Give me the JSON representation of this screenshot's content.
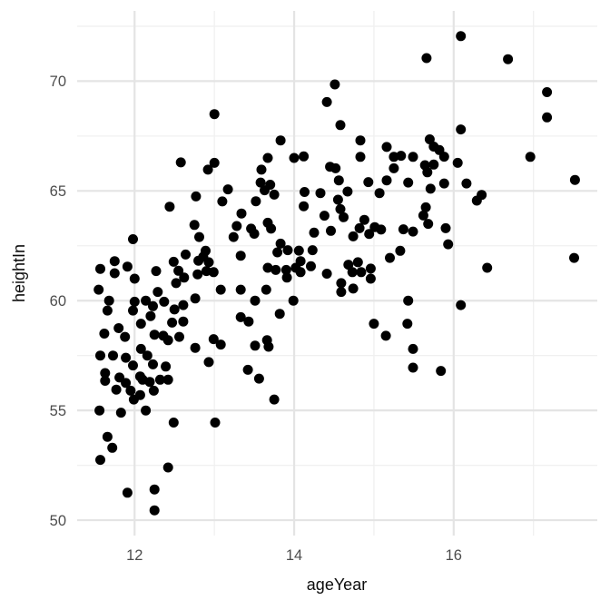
{
  "chart_data": {
    "type": "scatter",
    "title": "",
    "xlabel": "ageYear",
    "ylabel": "heightIn",
    "x_axis": {
      "ticks": [
        12,
        14,
        16
      ],
      "minor_ticks": [
        13,
        15,
        17
      ],
      "range": [
        11.28,
        17.8
      ]
    },
    "y_axis": {
      "ticks": [
        50,
        55,
        60,
        65,
        70
      ],
      "minor_ticks": [
        52.5,
        57.5,
        62.5,
        67.5,
        72.5
      ],
      "range": [
        49.3,
        73.2
      ]
    },
    "grid": true,
    "legend": false,
    "style": {
      "background": "#ffffff",
      "grid_major_color": "#e4e4e4",
      "grid_minor_color": "#f0f0f0",
      "grid_major_width": 2.2,
      "grid_minor_width": 1.3,
      "point_color": "#000000",
      "point_radius": 5.5,
      "tick_label_color": "#4d4d4d",
      "axis_title_color": "#0d0d0d"
    },
    "points": [
      [
        16.09,
        72.05
      ],
      [
        15.66,
        71.05
      ],
      [
        16.68,
        71.0
      ],
      [
        14.51,
        69.85
      ],
      [
        17.17,
        69.5
      ],
      [
        14.41,
        69.05
      ],
      [
        13.0,
        68.5
      ],
      [
        14.58,
        68.0
      ],
      [
        17.17,
        68.35
      ],
      [
        16.09,
        67.8
      ],
      [
        13.83,
        67.3
      ],
      [
        14.83,
        67.3
      ],
      [
        15.16,
        67.0
      ],
      [
        15.7,
        67.35
      ],
      [
        15.75,
        67.02
      ],
      [
        12.58,
        66.3
      ],
      [
        13.0,
        66.28
      ],
      [
        13.67,
        66.5
      ],
      [
        14.0,
        66.5
      ],
      [
        14.12,
        66.57
      ],
      [
        14.45,
        66.1
      ],
      [
        14.52,
        66.03
      ],
      [
        14.83,
        66.55
      ],
      [
        15.25,
        66.55
      ],
      [
        15.34,
        66.6
      ],
      [
        15.49,
        66.55
      ],
      [
        15.64,
        66.17
      ],
      [
        15.75,
        66.2
      ],
      [
        16.05,
        66.28
      ],
      [
        16.96,
        66.55
      ],
      [
        15.25,
        66.03
      ],
      [
        15.82,
        66.86
      ],
      [
        15.88,
        66.56
      ],
      [
        12.92,
        65.97
      ],
      [
        13.59,
        65.97
      ],
      [
        13.58,
        65.38
      ],
      [
        13.7,
        65.28
      ],
      [
        13.17,
        65.07
      ],
      [
        13.63,
        65.03
      ],
      [
        14.56,
        65.48
      ],
      [
        14.93,
        65.4
      ],
      [
        15.16,
        65.48
      ],
      [
        15.43,
        65.38
      ],
      [
        15.71,
        65.1
      ],
      [
        15.88,
        65.34
      ],
      [
        16.16,
        65.34
      ],
      [
        17.52,
        65.5
      ],
      [
        15.67,
        65.85
      ],
      [
        12.44,
        64.28
      ],
      [
        12.77,
        64.75
      ],
      [
        13.1,
        64.52
      ],
      [
        13.52,
        64.53
      ],
      [
        13.75,
        64.83
      ],
      [
        14.12,
        64.3
      ],
      [
        14.13,
        64.95
      ],
      [
        14.33,
        64.9
      ],
      [
        14.55,
        64.6
      ],
      [
        14.58,
        64.17
      ],
      [
        14.67,
        64.97
      ],
      [
        15.07,
        64.9
      ],
      [
        15.65,
        64.25
      ],
      [
        16.29,
        64.56
      ],
      [
        16.35,
        64.82
      ],
      [
        12.75,
        63.45
      ],
      [
        13.28,
        63.4
      ],
      [
        13.34,
        63.97
      ],
      [
        13.46,
        63.28
      ],
      [
        13.5,
        63.05
      ],
      [
        13.67,
        63.55
      ],
      [
        13.71,
        63.28
      ],
      [
        14.25,
        63.1
      ],
      [
        14.38,
        63.87
      ],
      [
        14.46,
        63.18
      ],
      [
        14.62,
        63.8
      ],
      [
        14.82,
        63.3
      ],
      [
        14.88,
        63.68
      ],
      [
        14.94,
        63.04
      ],
      [
        15.01,
        63.35
      ],
      [
        15.09,
        63.24
      ],
      [
        15.37,
        63.25
      ],
      [
        15.49,
        63.15
      ],
      [
        15.62,
        63.88
      ],
      [
        15.68,
        63.5
      ],
      [
        15.9,
        63.3
      ],
      [
        11.98,
        62.8
      ],
      [
        12.64,
        62.1
      ],
      [
        12.81,
        62.9
      ],
      [
        12.86,
        62.0
      ],
      [
        12.89,
        62.27
      ],
      [
        13.24,
        62.9
      ],
      [
        13.33,
        62.05
      ],
      [
        13.79,
        62.2
      ],
      [
        13.83,
        62.6
      ],
      [
        13.92,
        62.3
      ],
      [
        14.06,
        62.28
      ],
      [
        14.23,
        62.3
      ],
      [
        14.74,
        62.93
      ],
      [
        15.33,
        62.27
      ],
      [
        15.93,
        62.57
      ],
      [
        11.57,
        61.45
      ],
      [
        11.75,
        61.8
      ],
      [
        11.75,
        61.25
      ],
      [
        11.91,
        61.55
      ],
      [
        12.0,
        61.0
      ],
      [
        12.27,
        61.35
      ],
      [
        12.49,
        61.77
      ],
      [
        12.55,
        61.36
      ],
      [
        12.62,
        61.05
      ],
      [
        12.79,
        61.2
      ],
      [
        12.9,
        61.35
      ],
      [
        12.99,
        61.3
      ],
      [
        12.8,
        61.82
      ],
      [
        12.93,
        61.75
      ],
      [
        13.67,
        61.5
      ],
      [
        13.77,
        61.4
      ],
      [
        13.9,
        61.4
      ],
      [
        14.02,
        61.5
      ],
      [
        13.91,
        61.05
      ],
      [
        14.08,
        61.8
      ],
      [
        14.21,
        61.57
      ],
      [
        14.08,
        61.3
      ],
      [
        14.41,
        61.23
      ],
      [
        14.68,
        61.64
      ],
      [
        14.8,
        61.75
      ],
      [
        14.73,
        61.3
      ],
      [
        14.84,
        61.3
      ],
      [
        14.96,
        61.46
      ],
      [
        14.96,
        61.0
      ],
      [
        15.2,
        61.95
      ],
      [
        16.42,
        61.5
      ],
      [
        17.51,
        61.95
      ],
      [
        11.55,
        60.5
      ],
      [
        12.29,
        60.4
      ],
      [
        12.52,
        60.8
      ],
      [
        12.76,
        60.1
      ],
      [
        13.08,
        60.5
      ],
      [
        13.33,
        60.5
      ],
      [
        13.65,
        60.5
      ],
      [
        14.59,
        60.8
      ],
      [
        14.59,
        60.4
      ],
      [
        14.74,
        60.55
      ],
      [
        11.66,
        59.55
      ],
      [
        11.68,
        60.0
      ],
      [
        11.98,
        59.55
      ],
      [
        12.0,
        59.95
      ],
      [
        12.14,
        60.0
      ],
      [
        12.2,
        59.3
      ],
      [
        12.23,
        59.75
      ],
      [
        12.37,
        59.95
      ],
      [
        12.5,
        59.6
      ],
      [
        12.61,
        59.8
      ],
      [
        12.47,
        59.0
      ],
      [
        12.61,
        59.05
      ],
      [
        13.33,
        59.25
      ],
      [
        13.43,
        59.05
      ],
      [
        13.51,
        60.0
      ],
      [
        13.82,
        59.4
      ],
      [
        13.99,
        60.0
      ],
      [
        15.43,
        60.0
      ],
      [
        16.09,
        59.8
      ],
      [
        11.62,
        58.5
      ],
      [
        11.8,
        58.75
      ],
      [
        11.88,
        58.35
      ],
      [
        12.08,
        58.95
      ],
      [
        12.25,
        58.45
      ],
      [
        12.36,
        58.4
      ],
      [
        12.42,
        58.2
      ],
      [
        12.56,
        58.35
      ],
      [
        12.99,
        58.25
      ],
      [
        13.66,
        58.2
      ],
      [
        15.0,
        58.95
      ],
      [
        15.15,
        58.4
      ],
      [
        15.42,
        58.95
      ],
      [
        11.57,
        57.5
      ],
      [
        11.73,
        57.5
      ],
      [
        11.89,
        57.4
      ],
      [
        11.98,
        57.05
      ],
      [
        12.08,
        57.8
      ],
      [
        12.16,
        57.5
      ],
      [
        12.23,
        57.1
      ],
      [
        12.39,
        57.0
      ],
      [
        12.76,
        57.85
      ],
      [
        12.93,
        57.2
      ],
      [
        13.08,
        58.0
      ],
      [
        13.51,
        57.95
      ],
      [
        13.68,
        57.9
      ],
      [
        15.49,
        57.8
      ],
      [
        11.63,
        56.7
      ],
      [
        11.63,
        56.35
      ],
      [
        11.81,
        56.5
      ],
      [
        11.89,
        56.25
      ],
      [
        12.07,
        56.55
      ],
      [
        12.1,
        56.4
      ],
      [
        12.19,
        56.3
      ],
      [
        12.32,
        56.4
      ],
      [
        12.42,
        56.4
      ],
      [
        13.42,
        56.85
      ],
      [
        13.56,
        56.45
      ],
      [
        15.49,
        56.95
      ],
      [
        15.84,
        56.8
      ],
      [
        11.77,
        55.95
      ],
      [
        11.95,
        55.9
      ],
      [
        11.99,
        55.5
      ],
      [
        12.07,
        55.7
      ],
      [
        12.24,
        55.9
      ],
      [
        13.75,
        55.5
      ],
      [
        11.56,
        55.0
      ],
      [
        11.83,
        54.9
      ],
      [
        12.14,
        55.0
      ],
      [
        12.49,
        54.45
      ],
      [
        13.01,
        54.45
      ],
      [
        11.66,
        53.8
      ],
      [
        11.72,
        53.3
      ],
      [
        11.57,
        52.75
      ],
      [
        12.42,
        52.4
      ],
      [
        11.91,
        51.25
      ],
      [
        12.25,
        51.4
      ],
      [
        12.25,
        50.45
      ]
    ]
  }
}
